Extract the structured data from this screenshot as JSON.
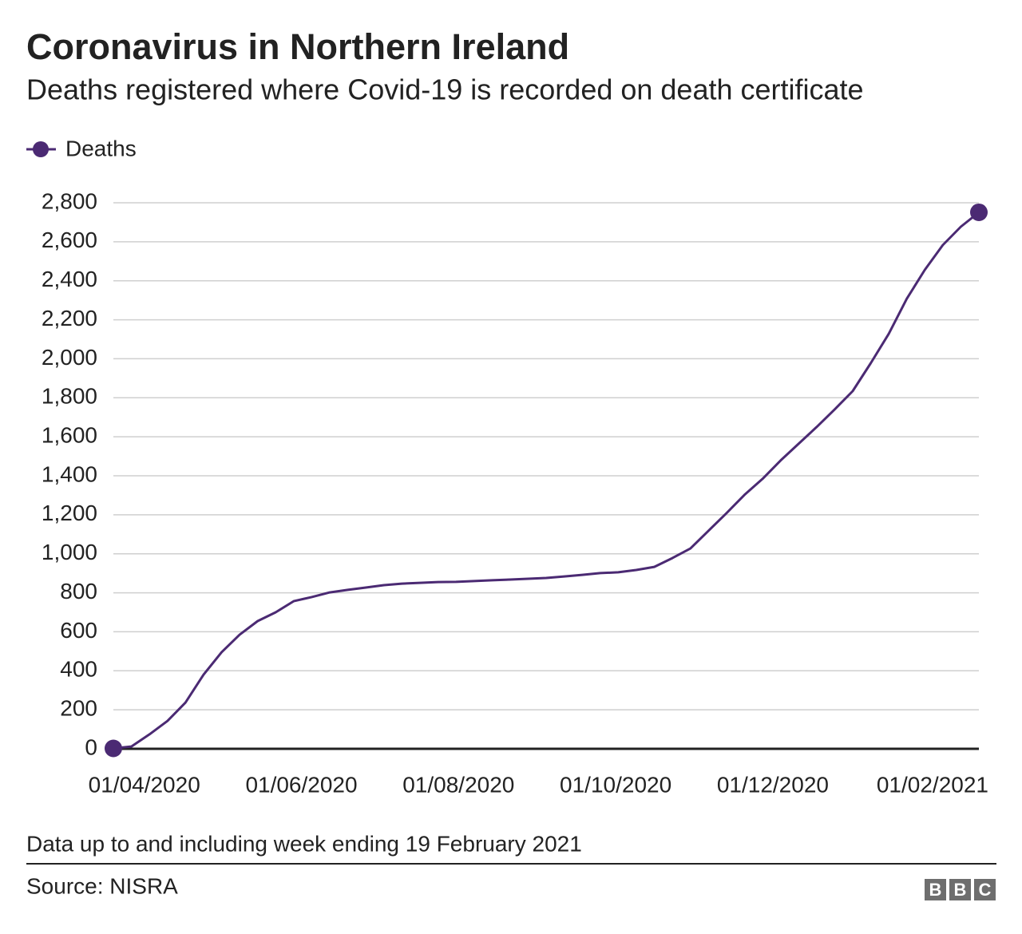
{
  "chart_data": {
    "type": "line",
    "title": "Coronavirus in Northern Ireland",
    "subtitle": "Deaths registered where Covid-19 is recorded on death certificate",
    "note": "Data up to and including week ending 19 February 2021",
    "source": "Source: NISRA",
    "logo": [
      "B",
      "B",
      "C"
    ],
    "x": [
      "20/03/2020",
      "27/03/2020",
      "03/04/2020",
      "10/04/2020",
      "17/04/2020",
      "24/04/2020",
      "01/05/2020",
      "08/05/2020",
      "15/05/2020",
      "22/05/2020",
      "29/05/2020",
      "05/06/2020",
      "12/06/2020",
      "19/06/2020",
      "26/06/2020",
      "03/07/2020",
      "10/07/2020",
      "17/07/2020",
      "24/07/2020",
      "31/07/2020",
      "07/08/2020",
      "14/08/2020",
      "21/08/2020",
      "28/08/2020",
      "04/09/2020",
      "11/09/2020",
      "18/09/2020",
      "25/09/2020",
      "02/10/2020",
      "09/10/2020",
      "16/10/2020",
      "23/10/2020",
      "30/10/2020",
      "06/11/2020",
      "13/11/2020",
      "20/11/2020",
      "27/11/2020",
      "04/12/2020",
      "11/12/2020",
      "18/12/2020",
      "25/12/2020",
      "01/01/2021",
      "08/01/2021",
      "15/01/2021",
      "22/01/2021",
      "29/01/2021",
      "05/02/2021",
      "12/02/2021",
      "19/02/2021"
    ],
    "series": [
      {
        "name": "Deaths",
        "color": "#4b2a73",
        "values": [
          2,
          12,
          74,
          143,
          237,
          380,
          495,
          585,
          655,
          700,
          757,
          778,
          802,
          815,
          827,
          839,
          847,
          851,
          855,
          856,
          860,
          864,
          868,
          872,
          876,
          884,
          892,
          901,
          905,
          917,
          933,
          978,
          1027,
          1118,
          1208,
          1302,
          1384,
          1478,
          1564,
          1650,
          1740,
          1834,
          1977,
          2128,
          2308,
          2456,
          2583,
          2677,
          2751
        ]
      }
    ],
    "xlim": [
      "20/03/2020",
      "19/02/2021"
    ],
    "xticks": [
      "01/04/2020",
      "01/06/2020",
      "01/08/2020",
      "01/10/2020",
      "01/12/2020",
      "01/02/2021"
    ],
    "ylim": [
      0,
      2800
    ],
    "yticks": [
      0,
      200,
      400,
      600,
      800,
      {
        "value": 1000,
        "label": "1,000"
      },
      {
        "value": 1200,
        "label": "1,200"
      },
      {
        "value": 1400,
        "label": "1,400"
      },
      {
        "value": 1600,
        "label": "1,600"
      },
      {
        "value": 1800,
        "label": "1,800"
      },
      {
        "value": 2000,
        "label": "2,000"
      },
      {
        "value": 2200,
        "label": "2,200"
      },
      {
        "value": 2400,
        "label": "2,400"
      },
      {
        "value": 2600,
        "label": "2,600"
      },
      {
        "value": 2800,
        "label": "2,800"
      }
    ],
    "grid": true
  }
}
